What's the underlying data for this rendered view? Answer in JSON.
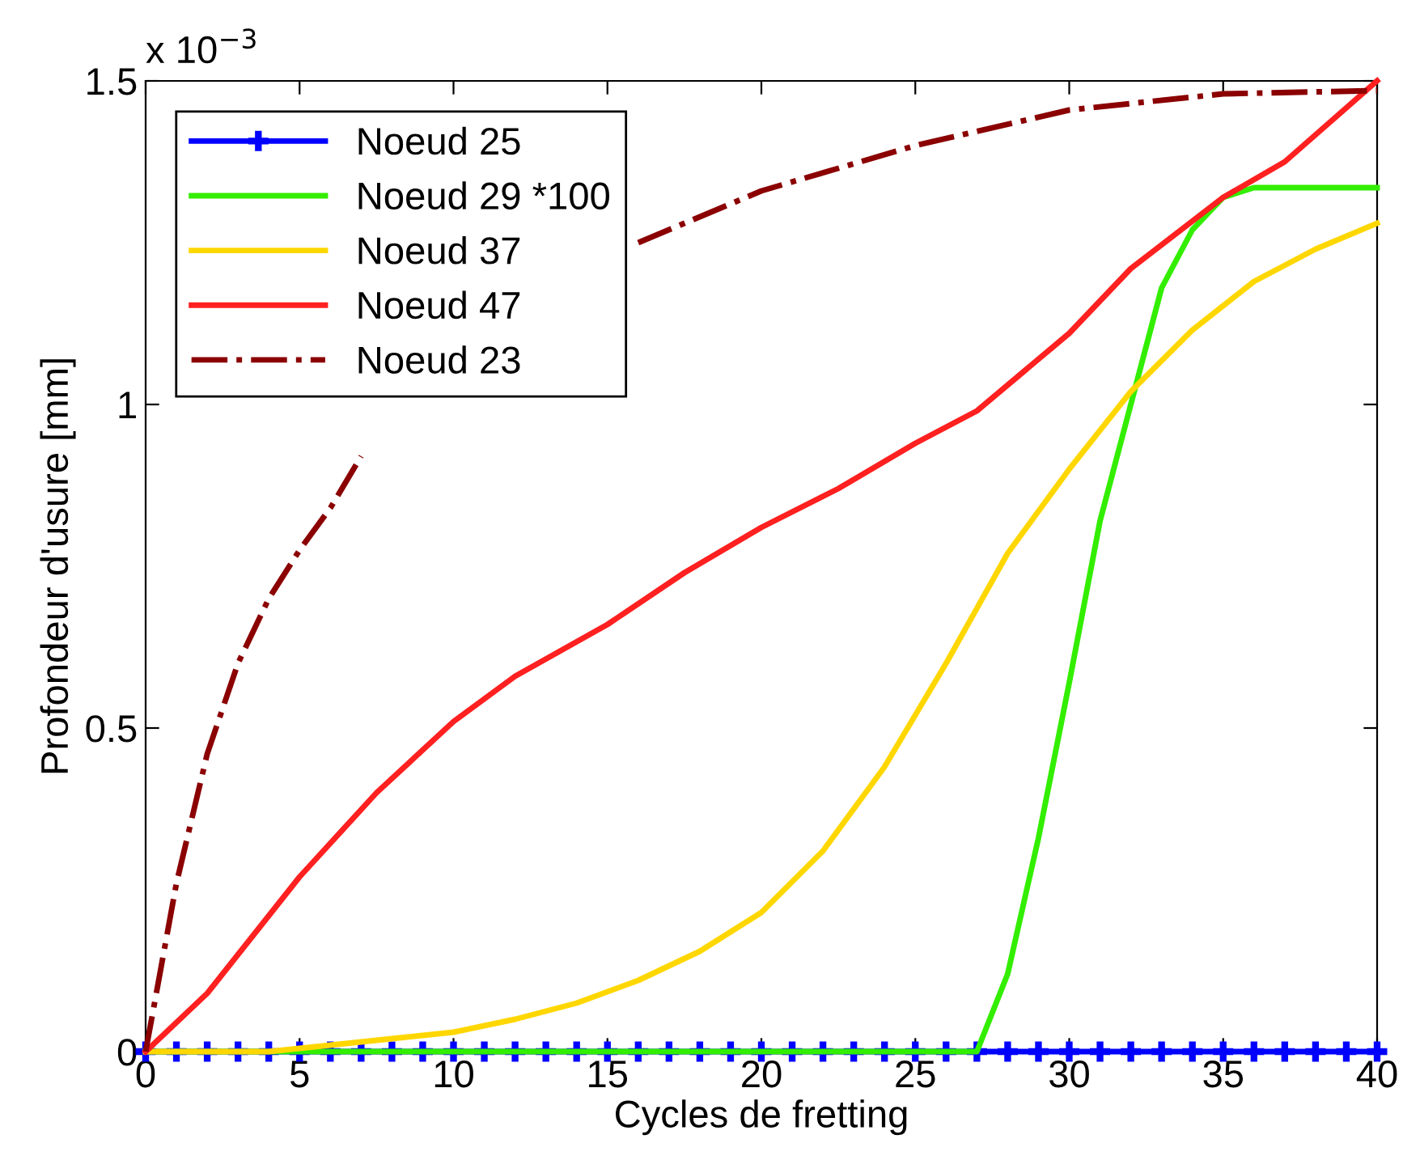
{
  "chart_data": {
    "type": "line",
    "xlabel": "Cycles de fretting",
    "ylabel": "Profondeur d'usure [mm]",
    "xlim": [
      0,
      40
    ],
    "xticks": [
      0,
      5,
      10,
      15,
      20,
      25,
      30,
      35,
      40
    ],
    "ylim": [
      0,
      1.5
    ],
    "yticks": [
      0,
      0.5,
      1,
      1.5
    ],
    "annotations": [
      "x 10$^{−3}$"
    ],
    "grid": false,
    "legend": "top left",
    "series": [
      {
        "name": "Noeud 25",
        "color": "#0000ff",
        "marker": "cross",
        "line_style": "solid",
        "x": [
          0,
          1,
          2,
          3,
          4,
          5,
          6,
          7,
          8,
          9,
          10,
          11,
          12,
          13,
          14,
          15,
          16,
          17,
          18,
          19,
          20,
          21,
          22,
          23,
          24,
          25,
          26,
          27,
          28,
          29,
          30,
          31,
          32,
          33,
          34,
          35,
          36,
          37,
          38,
          39,
          40
        ],
        "values": [
          0,
          0,
          0,
          0,
          0,
          0,
          0,
          0,
          0,
          0,
          0,
          0,
          0,
          0,
          0,
          0,
          0,
          0,
          0,
          0,
          0,
          0,
          0,
          0,
          0,
          0,
          0,
          0,
          0,
          0,
          0,
          0,
          0,
          0,
          0,
          0,
          0,
          0,
          0,
          0,
          0
        ]
      },
      {
        "name": "Noeud 29 *100",
        "color": "#33ee00",
        "line_style": "solid",
        "x": [
          0,
          5,
          10,
          15,
          20,
          25,
          27,
          28,
          29,
          30,
          31,
          32,
          33,
          34,
          35,
          36,
          37,
          38,
          39,
          40
        ],
        "values": [
          0,
          0,
          0,
          0,
          0,
          0,
          0,
          0.12,
          0.33,
          0.57,
          0.82,
          1.0,
          1.18,
          1.27,
          1.32,
          1.335,
          1.335,
          1.335,
          1.335,
          1.335
        ]
      },
      {
        "name": "Noeud 37",
        "color": "#ffd700",
        "line_style": "solid",
        "x": [
          0,
          2,
          4,
          6,
          8,
          10,
          12,
          14,
          16,
          18,
          20,
          22,
          24,
          26,
          28,
          30,
          32,
          34,
          36,
          38,
          40
        ],
        "values": [
          0,
          0,
          0,
          0.01,
          0.02,
          0.03,
          0.05,
          0.075,
          0.11,
          0.155,
          0.215,
          0.31,
          0.44,
          0.6,
          0.77,
          0.9,
          1.02,
          1.115,
          1.19,
          1.24,
          1.28
        ]
      },
      {
        "name": "Noeud 47",
        "color": "#ff2020",
        "line_style": "solid",
        "x": [
          0,
          2,
          5,
          7.5,
          10,
          12,
          15,
          17.5,
          20,
          22.5,
          25,
          27,
          30,
          32,
          35,
          37,
          40
        ],
        "values": [
          0,
          0.09,
          0.27,
          0.4,
          0.51,
          0.58,
          0.66,
          0.74,
          0.81,
          0.87,
          0.94,
          0.99,
          1.11,
          1.21,
          1.32,
          1.375,
          1.5
        ]
      },
      {
        "name": "Noeud 23",
        "color": "#8b0000",
        "line_style": "dashdot",
        "x": [
          0,
          1,
          2,
          3,
          4,
          5,
          6,
          7,
          10,
          12,
          16,
          20,
          25,
          30,
          35,
          40
        ],
        "values": [
          0,
          0.26,
          0.46,
          0.6,
          0.7,
          0.775,
          0.84,
          0.92,
          null,
          null,
          1.25,
          1.33,
          1.4,
          1.455,
          1.48,
          1.485
        ]
      }
    ]
  }
}
